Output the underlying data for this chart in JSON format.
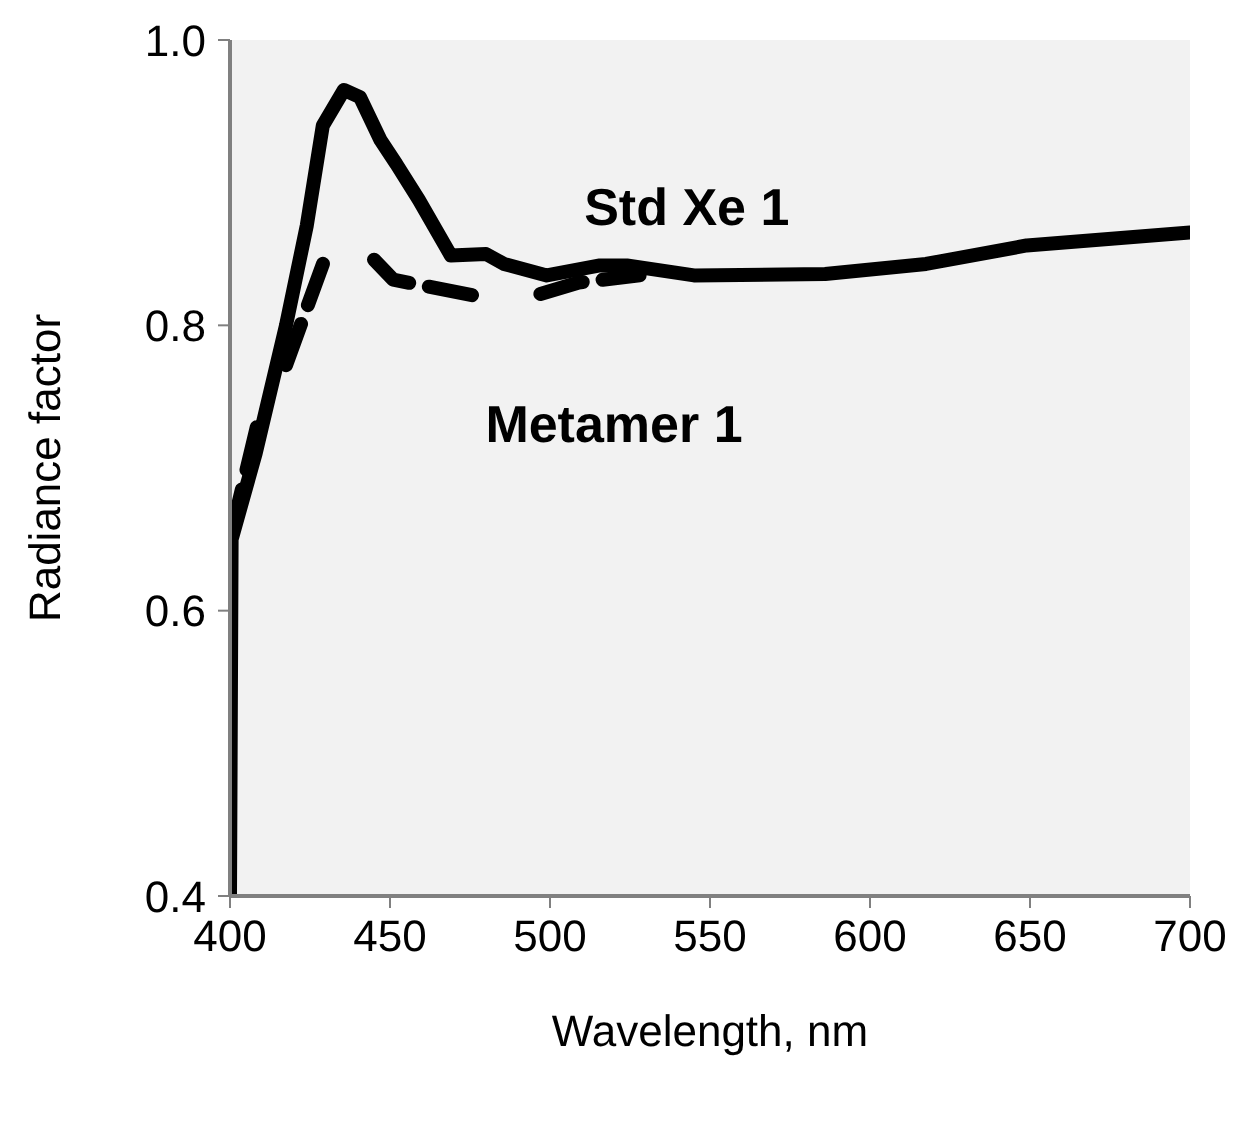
{
  "chart_data": {
    "type": "line",
    "xlabel": "Wavelength, nm",
    "ylabel": "Radiance factor",
    "xlim": [
      400,
      700
    ],
    "xticks": [
      400,
      450,
      500,
      550,
      600,
      650,
      700
    ],
    "ylim": [
      0.4,
      1.0
    ],
    "yticks": [
      {
        "value": 0.4,
        "label": "0.4"
      },
      {
        "value": 0.6,
        "label": "0.6"
      },
      {
        "value": 0.8,
        "label": "0.8"
      },
      {
        "value": 1.0,
        "label": "1.0"
      }
    ],
    "marker": "none",
    "series": [
      {
        "name": "Std Xe 1",
        "color": "#000000",
        "line_style": "solid",
        "x": [
          400,
          400.5,
          408,
          417.5,
          424,
          429,
          435.6,
          440.6,
          447,
          452,
          459,
          469,
          480,
          485.6,
          499,
          515.6,
          524,
          545,
          586,
          617.5,
          649,
          700
        ],
        "values": [
          0.4,
          0.65,
          0.71,
          0.8,
          0.87,
          0.94,
          0.965,
          0.96,
          0.93,
          0.913,
          0.888,
          0.849,
          0.85,
          0.843,
          0.835,
          0.842,
          0.842,
          0.835,
          0.836,
          0.843,
          0.856,
          0.865
        ]
      },
      {
        "name": "Metamer 1",
        "color": "#000000",
        "line_style": "dashed",
        "x": [
          400.5,
          408.5,
          413,
          417.5,
          430,
          437,
          445,
          451,
          476,
          486,
          497,
          509,
          528
        ],
        "values": [
          0.655,
          0.73,
          null,
          0.772,
          0.849,
          null,
          0.846,
          0.832,
          0.821,
          null,
          0.822,
          0.83,
          0.835
        ]
      }
    ]
  }
}
